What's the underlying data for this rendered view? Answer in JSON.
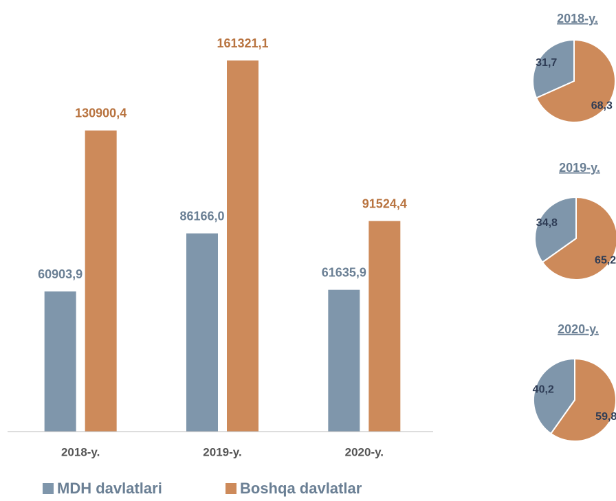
{
  "chart_data": [
    {
      "type": "bar",
      "categories": [
        "2018-y.",
        "2019-y.",
        "2020-y."
      ],
      "series": [
        {
          "name": "MDH davlatlari",
          "color": "#7f96ab",
          "label_color": "#6a7f94",
          "values": [
            60903.9,
            86166.0,
            61635.9
          ],
          "value_labels": [
            "60903,9",
            "86166,0",
            "61635,9"
          ]
        },
        {
          "name": "Boshqa davlatlar",
          "color": "#cd8a5a",
          "label_color": "#b8733f",
          "values": [
            130900.4,
            161321.1,
            91524.4
          ],
          "value_labels": [
            "130900,4",
            "161321,1",
            "91524,4"
          ]
        }
      ],
      "ylim": [
        0,
        180000
      ]
    },
    {
      "type": "pie",
      "title": "2018-y.",
      "values": [
        31.7,
        68.3
      ],
      "value_labels": [
        "31,7",
        "68,3"
      ],
      "colors": [
        "#7f96ab",
        "#cd8a5a"
      ]
    },
    {
      "type": "pie",
      "title": "2019-y.",
      "values": [
        34.8,
        65.2
      ],
      "value_labels": [
        "34,8",
        "65,2"
      ],
      "colors": [
        "#7f96ab",
        "#cd8a5a"
      ]
    },
    {
      "type": "pie",
      "title": "2020-y.",
      "values": [
        40.2,
        59.8
      ],
      "value_labels": [
        "40,2",
        "59,8"
      ],
      "colors": [
        "#7f96ab",
        "#cd8a5a"
      ]
    }
  ]
}
